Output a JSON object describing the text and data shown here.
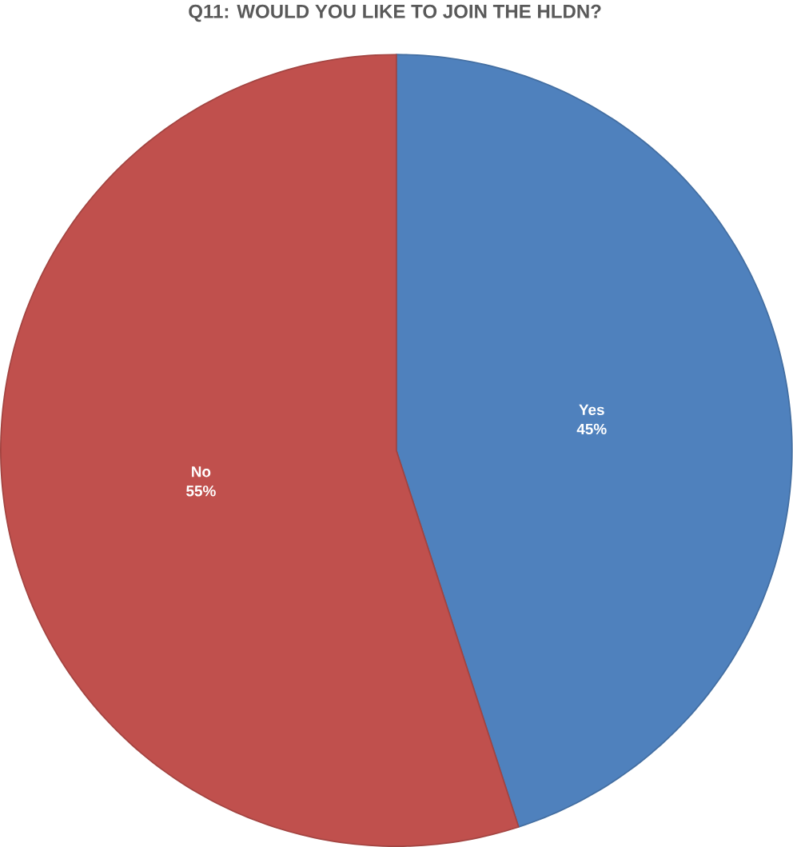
{
  "chart_data": {
    "type": "pie",
    "title": "Q11: WOULD YOU LIKE TO JOIN THE HLDN?",
    "categories": [
      "Yes",
      "No"
    ],
    "values": [
      45,
      55
    ],
    "colors": [
      "#4f81bd",
      "#c0504d"
    ],
    "value_labels": [
      "45%",
      "55%"
    ]
  }
}
